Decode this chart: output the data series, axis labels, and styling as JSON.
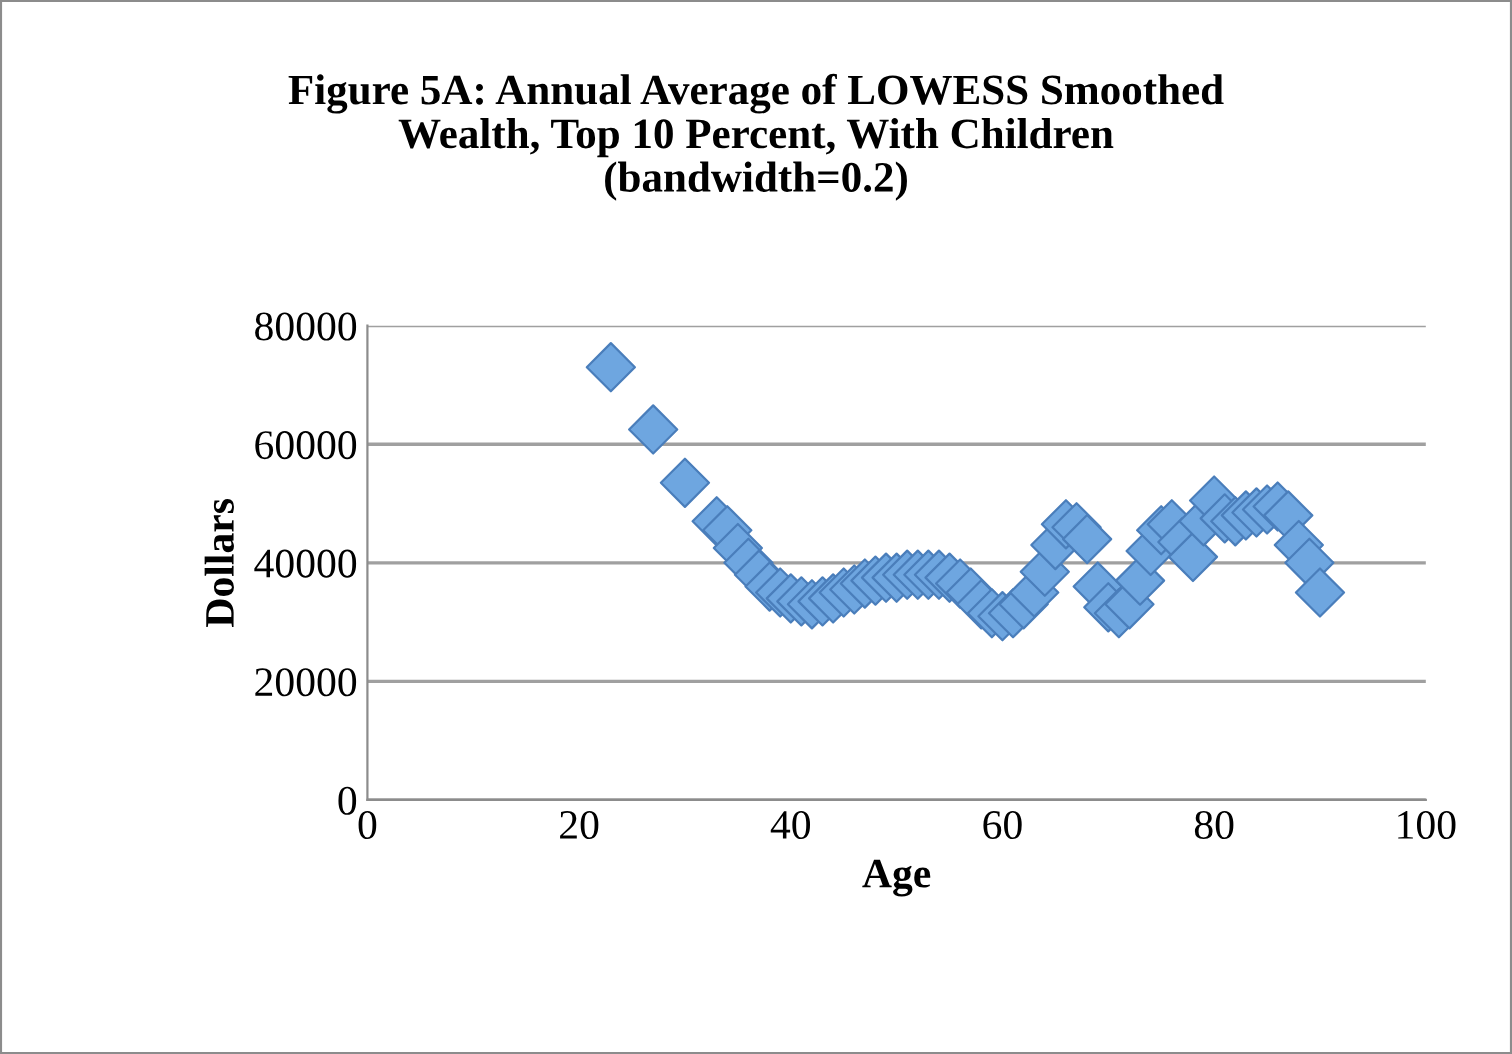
{
  "chart_data": {
    "type": "scatter",
    "title": "Figure 5A: Annual Average of LOWESS Smoothed\nWealth, Top 10 Percent, With Children\n(bandwidth=0.2)",
    "xlabel": "Age",
    "ylabel": "Dollars",
    "x": [
      23,
      27,
      30,
      33,
      34,
      35,
      36,
      37,
      38,
      39,
      40,
      41,
      42,
      43,
      44,
      45,
      46,
      47,
      48,
      49,
      50,
      51,
      52,
      53,
      54,
      55,
      56,
      57,
      58,
      59,
      60,
      61,
      62,
      63,
      64,
      65,
      66,
      67,
      68,
      69,
      70,
      71,
      72,
      73,
      74,
      75,
      76,
      77,
      78,
      79,
      80,
      81,
      82,
      83,
      84,
      85,
      86,
      87,
      88,
      89,
      90
    ],
    "series": [
      {
        "color": "#6ea6e0",
        "values": [
          73000,
          62500,
          53500,
          47000,
          45500,
          42500,
          40000,
          38000,
          36000,
          35000,
          34000,
          33500,
          33000,
          33500,
          34000,
          35000,
          35500,
          36500,
          37000,
          37500,
          37500,
          38000,
          38000,
          38000,
          38000,
          37500,
          36500,
          35000,
          33000,
          31500,
          31000,
          31500,
          33000,
          35000,
          38500,
          43000,
          46500,
          46000,
          44000,
          36000,
          32500,
          31500,
          33000,
          37000,
          42000,
          45500,
          46500,
          43500,
          41000,
          47000,
          50500,
          47500,
          47000,
          48000,
          48500,
          49000,
          49500,
          48000,
          43000,
          40000,
          35000
        ]
      }
    ],
    "xlim": [
      0,
      100
    ],
    "xticks": [
      0,
      20,
      40,
      60,
      80,
      100
    ],
    "ylim": [
      0,
      80000
    ],
    "yticks": [
      0,
      20000,
      40000,
      60000,
      80000
    ],
    "grid": "y",
    "marker": "diamond",
    "legend": false
  }
}
